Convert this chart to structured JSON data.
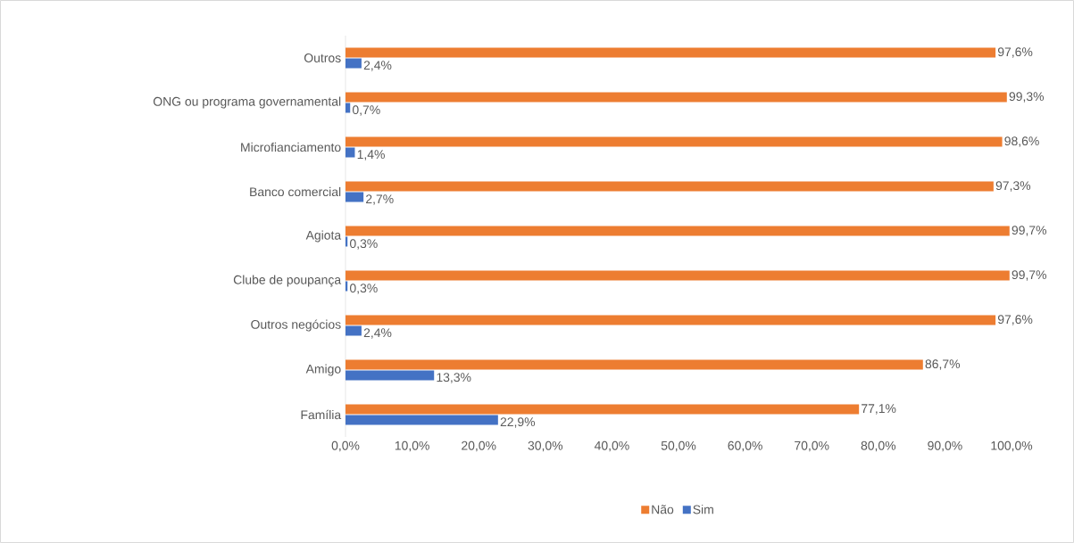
{
  "chart_data": {
    "type": "bar",
    "orientation": "horizontal",
    "categories": [
      "Outros",
      "ONG ou programa governamental",
      "Microfianciamento",
      "Banco comercial",
      "Agiota",
      "Clube de poupança",
      "Outros negócios",
      "Amigo",
      "Família"
    ],
    "series": [
      {
        "name": "Não",
        "color": "#ed7d31",
        "values": [
          97.6,
          99.3,
          98.6,
          97.3,
          99.7,
          99.7,
          97.6,
          86.7,
          77.1
        ],
        "value_labels": [
          "97,6%",
          "99,3%",
          "98,6%",
          "97,3%",
          "99,7%",
          "99,7%",
          "97,6%",
          "86,7%",
          "77,1%"
        ]
      },
      {
        "name": "Sim",
        "color": "#4472c4",
        "values": [
          2.4,
          0.7,
          1.4,
          2.7,
          0.3,
          0.3,
          2.4,
          13.3,
          22.9
        ],
        "value_labels": [
          "2,4%",
          "0,7%",
          "1,4%",
          "2,7%",
          "0,3%",
          "0,3%",
          "2,4%",
          "13,3%",
          "22,9%"
        ]
      }
    ],
    "xlim": [
      0,
      100
    ],
    "xticks": [
      {
        "value": 0,
        "label": "0,0%"
      },
      {
        "value": 10,
        "label": "10,0%"
      },
      {
        "value": 20,
        "label": "20,0%"
      },
      {
        "value": 30,
        "label": "30,0%"
      },
      {
        "value": 40,
        "label": "40,0%"
      },
      {
        "value": 50,
        "label": "50,0%"
      },
      {
        "value": 60,
        "label": "60,0%"
      },
      {
        "value": 70,
        "label": "70,0%"
      },
      {
        "value": 80,
        "label": "80,0%"
      },
      {
        "value": 90,
        "label": "90,0%"
      },
      {
        "value": 100,
        "label": "100,0%"
      }
    ],
    "grid": false,
    "legend": "bottom"
  }
}
